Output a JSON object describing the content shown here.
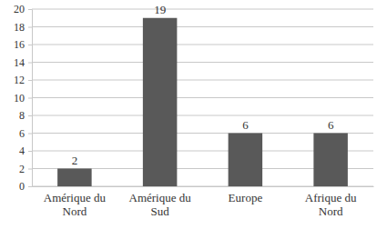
{
  "chart_data": {
    "type": "bar",
    "categories": [
      "Amérique du Nord",
      "Amérique du Sud",
      "Europe",
      "Afrique du Nord"
    ],
    "values": [
      2,
      19,
      6,
      6
    ],
    "color": "#595959",
    "ylim": [
      0,
      20
    ],
    "yticks": [
      0,
      2,
      4,
      6,
      8,
      10,
      12,
      14,
      16,
      18,
      20
    ],
    "grid": true,
    "data_labels": true
  }
}
